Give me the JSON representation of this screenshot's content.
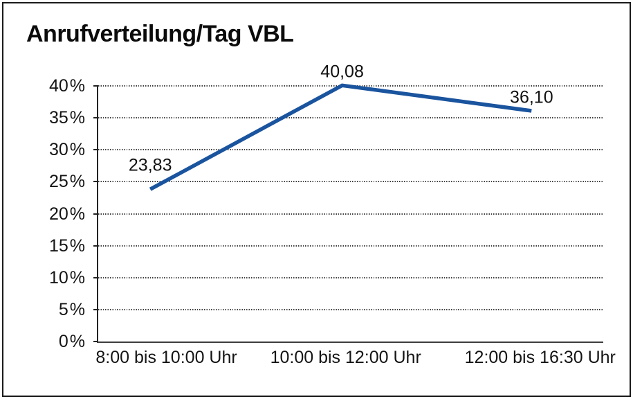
{
  "window": {
    "background": "#ffffff",
    "border_color": "#1a1a1a"
  },
  "chart_data": {
    "type": "line",
    "title": "Anrufverteilung/Tag VBL",
    "categories": [
      "8:00 bis 10:00 Uhr",
      "10:00 bis 12:00 Uhr",
      "12:00 bis 16:30 Uhr"
    ],
    "values": [
      23.83,
      40.08,
      36.1
    ],
    "data_labels": [
      "23,83",
      "40,08",
      "36,10"
    ],
    "y_tick_labels": [
      "0 %",
      "5 %",
      "10 %",
      "15 %",
      "20 %",
      "25 %",
      "30 %",
      "35 %",
      "40 %"
    ],
    "ylim": [
      0,
      40
    ],
    "y_step": 5,
    "xlabel": "",
    "ylabel": "",
    "legend": "none",
    "grid": "horizontal-dotted",
    "line_color": "#1a549e",
    "axis_color": "#222222",
    "text_color": "#141414"
  }
}
